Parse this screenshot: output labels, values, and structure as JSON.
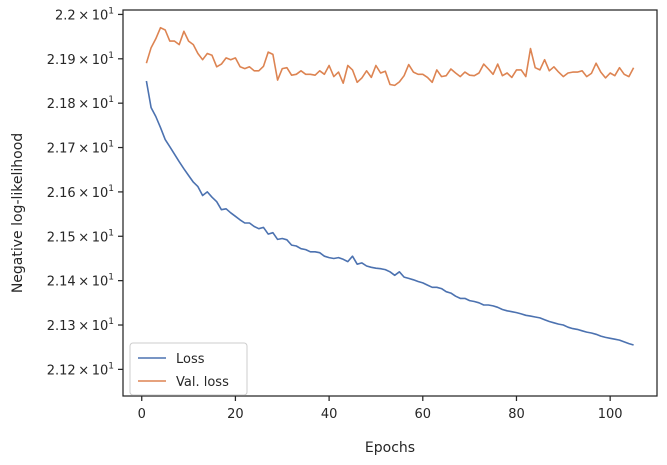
{
  "chart_data": {
    "type": "line",
    "xlabel": "Epochs",
    "ylabel": "Negative log-likelihood",
    "xlim": [
      -4,
      110
    ],
    "ylim": [
      21.114,
      21.201
    ],
    "xticks": [
      0,
      20,
      40,
      60,
      80,
      100
    ],
    "xtick_labels": [
      "0",
      "20",
      "40",
      "60",
      "80",
      "100"
    ],
    "yticks": [
      21.12,
      21.13,
      21.14,
      21.15,
      21.16,
      21.17,
      21.18,
      21.19,
      21.2
    ],
    "ytick_labels": [
      {
        "mantissa": "2.12",
        "exponent": "1"
      },
      {
        "mantissa": "2.13",
        "exponent": "1"
      },
      {
        "mantissa": "2.14",
        "exponent": "1"
      },
      {
        "mantissa": "2.15",
        "exponent": "1"
      },
      {
        "mantissa": "2.16",
        "exponent": "1"
      },
      {
        "mantissa": "2.17",
        "exponent": "1"
      },
      {
        "mantissa": "2.18",
        "exponent": "1"
      },
      {
        "mantissa": "2.19",
        "exponent": "1"
      },
      {
        "mantissa": "2.2",
        "exponent": "1"
      }
    ],
    "tick_separator": "×",
    "tick_base": "10",
    "grid": false,
    "legend_position": "lower-left",
    "series": [
      {
        "name": "Loss",
        "color": "#4c72b0",
        "x": [
          1,
          2,
          3,
          4,
          5,
          6,
          7,
          8,
          9,
          10,
          11,
          12,
          13,
          14,
          15,
          16,
          17,
          18,
          19,
          20,
          21,
          22,
          23,
          24,
          25,
          26,
          27,
          28,
          29,
          30,
          31,
          32,
          33,
          34,
          35,
          36,
          37,
          38,
          39,
          40,
          41,
          42,
          43,
          44,
          45,
          46,
          47,
          48,
          49,
          50,
          51,
          52,
          53,
          54,
          55,
          56,
          57,
          58,
          59,
          60,
          61,
          62,
          63,
          64,
          65,
          66,
          67,
          68,
          69,
          70,
          71,
          72,
          73,
          74,
          75,
          76,
          77,
          78,
          79,
          80,
          81,
          82,
          83,
          84,
          85,
          86,
          87,
          88,
          89,
          90,
          91,
          92,
          93,
          94,
          95,
          96,
          97,
          98,
          99,
          100,
          101,
          102,
          103,
          104,
          105
        ],
        "y": [
          21.185,
          21.179,
          21.177,
          21.1745,
          21.1718,
          21.1702,
          21.1685,
          21.1668,
          21.1652,
          21.1637,
          21.1622,
          21.1612,
          21.1592,
          21.16,
          21.1588,
          21.1578,
          21.156,
          21.1562,
          21.1553,
          21.1545,
          21.1537,
          21.153,
          21.153,
          21.1522,
          21.1517,
          21.152,
          21.1505,
          21.1508,
          21.1493,
          21.1495,
          21.1492,
          21.148,
          21.1478,
          21.1472,
          21.147,
          21.1465,
          21.1465,
          21.1463,
          21.1455,
          21.1452,
          21.145,
          21.1452,
          21.1448,
          21.1443,
          21.1455,
          21.1437,
          21.144,
          21.1433,
          21.143,
          21.1428,
          21.1427,
          21.1425,
          21.142,
          21.1412,
          21.142,
          21.1408,
          21.1405,
          21.1402,
          21.1398,
          21.1395,
          21.139,
          21.1385,
          21.1385,
          21.1382,
          21.1375,
          21.1372,
          21.1365,
          21.136,
          21.136,
          21.1355,
          21.1353,
          21.135,
          21.1345,
          21.1345,
          21.1343,
          21.134,
          21.1335,
          21.1332,
          21.133,
          21.1328,
          21.1325,
          21.1322,
          21.132,
          21.1318,
          21.1316,
          21.1312,
          21.1308,
          21.1305,
          21.1302,
          21.13,
          21.1295,
          21.1292,
          21.129,
          21.1287,
          21.1284,
          21.1282,
          21.1279,
          21.1275,
          21.1272,
          21.127,
          21.1268,
          21.1266,
          21.1262,
          21.1258,
          21.1255
        ],
        "note_y_values_are_replaced_below": true
      },
      {
        "name": "Val. loss",
        "color": "#dd8452",
        "x": [
          1,
          2,
          3,
          4,
          5,
          6,
          7,
          8,
          9,
          10,
          11,
          12,
          13,
          14,
          15,
          16,
          17,
          18,
          19,
          20,
          21,
          22,
          23,
          24,
          25,
          26,
          27,
          28,
          29,
          30,
          31,
          32,
          33,
          34,
          35,
          36,
          37,
          38,
          39,
          40,
          41,
          42,
          43,
          44,
          45,
          46,
          47,
          48,
          49,
          50,
          51,
          52,
          53,
          54,
          55,
          56,
          57,
          58,
          59,
          60,
          61,
          62,
          63,
          64,
          65,
          66,
          67,
          68,
          69,
          70,
          71,
          72,
          73,
          74,
          75,
          76,
          77,
          78,
          79,
          80,
          81,
          82,
          83,
          84,
          85,
          86,
          87,
          88,
          89,
          90,
          91,
          92,
          93,
          94,
          95,
          96,
          97,
          98,
          99,
          100,
          101,
          102,
          103,
          104,
          105
        ],
        "y": [
          21.189,
          21.1925,
          21.1945,
          21.197,
          21.1965,
          21.194,
          21.194,
          21.1932,
          21.1962,
          21.194,
          21.1932,
          21.1912,
          21.1898,
          21.1912,
          21.1908,
          21.1882,
          21.1888,
          21.1902,
          21.1898,
          21.1902,
          21.1882,
          21.1878,
          21.1882,
          21.1873,
          21.1873,
          21.1883,
          21.1915,
          21.191,
          21.1852,
          21.1878,
          21.188,
          21.1863,
          21.1865,
          21.1873,
          21.1865,
          21.1865,
          21.1863,
          21.1873,
          21.1865,
          21.1885,
          21.186,
          21.187,
          21.1845,
          21.1885,
          21.1875,
          21.1847,
          21.1857,
          21.1873,
          21.1858,
          21.1885,
          21.1868,
          21.1872,
          21.1842,
          21.184,
          21.1848,
          21.1862,
          21.1887,
          21.187,
          21.1865,
          21.1865,
          21.1858,
          21.1847,
          21.1875,
          21.186,
          21.1862,
          21.1877,
          21.1868,
          21.186,
          21.187,
          21.1863,
          21.1862,
          21.1868,
          21.1888,
          21.1877,
          21.1865,
          21.1888,
          21.1862,
          21.1868,
          21.1858,
          21.1875,
          21.1875,
          21.186,
          21.1923,
          21.188,
          21.1875,
          21.1898,
          21.1873,
          21.1882,
          21.187,
          21.186,
          21.1868,
          21.187,
          21.187,
          21.1873,
          21.186,
          21.1867,
          21.189,
          21.187,
          21.1857,
          21.1868,
          21.1862,
          21.188,
          21.1865,
          21.186,
          21.188
        ]
      }
    ]
  }
}
